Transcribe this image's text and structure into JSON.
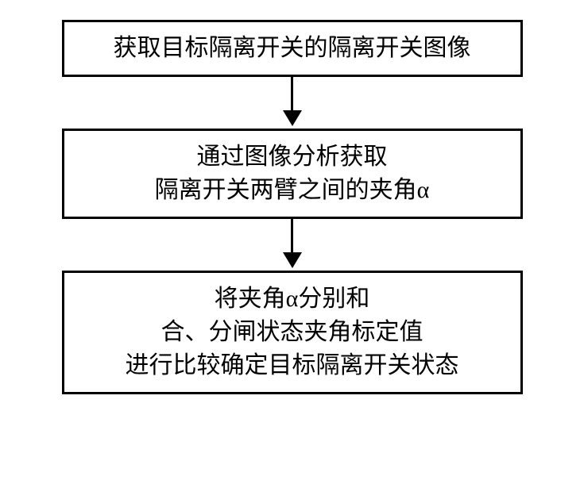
{
  "flowchart": {
    "type": "flowchart",
    "background_color": "#ffffff",
    "border_color": "#000000",
    "border_width": 3,
    "text_color": "#000000",
    "font_size": 30,
    "arrow_color": "#000000",
    "nodes": [
      {
        "id": "step1",
        "lines": [
          "获取目标隔离开关的隔离开关图像"
        ]
      },
      {
        "id": "step2",
        "lines": [
          "通过图像分析获取",
          "隔离开关两臂之间的夹角α"
        ]
      },
      {
        "id": "step3",
        "lines": [
          "将夹角α分别和",
          "合、分闸状态夹角标定值",
          "进行比较确定目标隔离开关状态"
        ]
      }
    ],
    "edges": [
      {
        "from": "step1",
        "to": "step2"
      },
      {
        "from": "step2",
        "to": "step3"
      }
    ]
  }
}
